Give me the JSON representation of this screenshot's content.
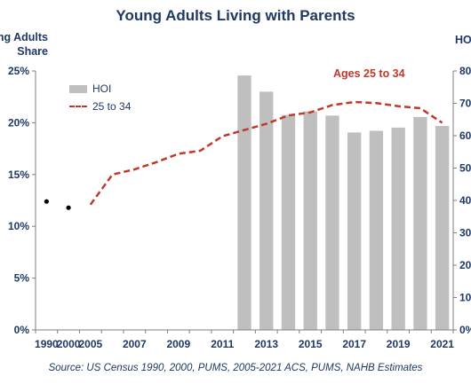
{
  "chart_data": {
    "type": "bar",
    "title": "Young Adults Living with Parents",
    "left_axis_label_line1": "ng Adults",
    "left_axis_label_line2": "Share",
    "right_axis_label": "HO",
    "annotation": "Ages 25 to 34",
    "source": "Source: US Census 1990, 2000, PUMS, 2005-2021 ACS, PUMS, NAHB Estimates",
    "legend": [
      {
        "label": "HOI",
        "kind": "bar",
        "color": "#bfbfbf"
      },
      {
        "label": "25 to 34",
        "kind": "dashed-line",
        "color": "#c0392b"
      }
    ],
    "x_tick_labels": [
      "1990",
      "2000",
      "2005",
      "2007",
      "2009",
      "2011",
      "2013",
      "2015",
      "2017",
      "2019",
      "2021"
    ],
    "y_left": {
      "ylim": [
        0,
        25
      ],
      "ticks": [
        "0%",
        "5%",
        "10%",
        "15%",
        "20%",
        "25%"
      ]
    },
    "y_right": {
      "ylim": [
        0,
        80
      ],
      "ticks": [
        "0%",
        "10",
        "20",
        "30",
        "40",
        "50",
        "60",
        "70",
        "80"
      ]
    },
    "categories": [
      "1990",
      "2000",
      "2005",
      "2006",
      "2007",
      "2008",
      "2009",
      "2010",
      "2011",
      "2012",
      "2013",
      "2014",
      "2015",
      "2016",
      "2017",
      "2018",
      "2019",
      "2020",
      "2021"
    ],
    "series": [
      {
        "name": "HOI",
        "type": "bar",
        "axis": "right",
        "values": [
          null,
          null,
          null,
          null,
          null,
          null,
          null,
          null,
          null,
          78.6,
          73.6,
          66.4,
          67.5,
          66.2,
          61.0,
          61.5,
          62.5,
          65.8,
          63.0
        ]
      },
      {
        "name": "25 to 34",
        "type": "line",
        "axis": "left",
        "values": [
          12.4,
          11.8,
          12.1,
          15.0,
          15.5,
          16.2,
          17.0,
          17.3,
          18.7,
          19.3,
          19.9,
          20.7,
          21.0,
          21.7,
          22.0,
          21.9,
          21.6,
          21.4,
          20.0
        ]
      }
    ]
  }
}
